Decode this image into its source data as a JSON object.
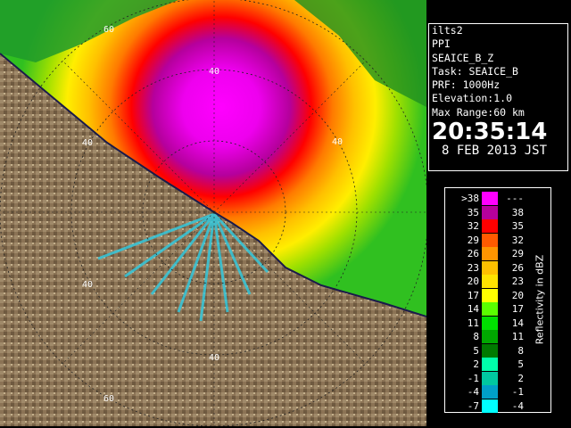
{
  "info": {
    "host": "ilts2",
    "scan_mode": "PPI",
    "product": "SEAICE_B_Z",
    "task": "Task: SEAICE_B",
    "prf": "PRF: 1000Hz",
    "elevation": "Elevation:1.0",
    "max_range": "Max Range:60 km",
    "time": "20:35:14",
    "date": "8 FEB 2013 JST"
  },
  "legend": {
    "title": "Reflectivity in dBZ",
    "rows": [
      {
        "lo": ">38",
        "hi": "---",
        "color": "#ff00ff"
      },
      {
        "lo": "35",
        "hi": "38",
        "color": "#b5009c"
      },
      {
        "lo": "32",
        "hi": "35",
        "color": "#ff0000"
      },
      {
        "lo": "29",
        "hi": "32",
        "color": "#ff5a00"
      },
      {
        "lo": "26",
        "hi": "29",
        "color": "#ff9500"
      },
      {
        "lo": "23",
        "hi": "26",
        "color": "#ffc000"
      },
      {
        "lo": "20",
        "hi": "23",
        "color": "#ffe300"
      },
      {
        "lo": "17",
        "hi": "20",
        "color": "#ffff00"
      },
      {
        "lo": "14",
        "hi": "17",
        "color": "#5aff00"
      },
      {
        "lo": "11",
        "hi": "14",
        "color": "#00e000"
      },
      {
        "lo": "8",
        "hi": "11",
        "color": "#00a800"
      },
      {
        "lo": "5",
        "hi": "8",
        "color": "#007a00"
      },
      {
        "lo": "2",
        "hi": "5",
        "color": "#00ffaa"
      },
      {
        "lo": "-1",
        "hi": "2",
        "color": "#00c8a0"
      },
      {
        "lo": "-4",
        "hi": "-1",
        "color": "#00a0c8"
      },
      {
        "lo": "-7",
        "hi": "-4",
        "color": "#00ffff"
      }
    ]
  },
  "range_ring_labels": [
    "60",
    "40",
    "40",
    "40",
    "40",
    "40",
    "60"
  ]
}
